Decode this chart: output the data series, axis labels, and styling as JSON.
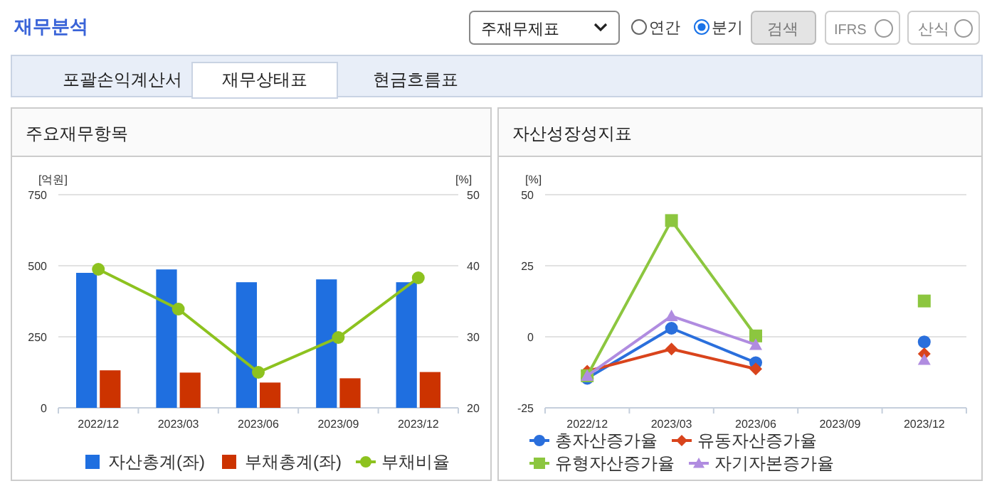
{
  "chart_data": [
    {
      "type": "other",
      "title": "재무분석",
      "annotations": [
        "주재무제표",
        "연간",
        "분기",
        "검색",
        "IFRS",
        "산식",
        "포괄손익계산서",
        "재무상태표",
        "현금흐름표"
      ]
    },
    {
      "type": "bar",
      "title": "주요재무항목",
      "ylabel": "[억원]",
      "y2label": "[%]",
      "categories": [
        "2022/12",
        "2023/03",
        "2023/06",
        "2023/09",
        "2023/12"
      ],
      "ylim": [
        0,
        750
      ],
      "yticks": [
        0,
        250,
        500,
        750
      ],
      "y2lim": [
        20,
        50
      ],
      "y2ticks": [
        20,
        30,
        40,
        50
      ],
      "grid": "y",
      "legend": "bottom",
      "series": [
        {
          "name": "자산총계(좌)",
          "color": "#1f6fe0",
          "values": [
            475,
            487,
            442,
            452,
            442
          ]
        },
        {
          "name": "부채총계(좌)",
          "color": "#cc3300",
          "values": [
            132,
            124,
            89,
            104,
            126
          ]
        },
        {
          "name": "부채비율",
          "color": "#8dc21f",
          "type": "line",
          "axis": "y2",
          "marker": "circle",
          "values": [
            39.5,
            33.9,
            25.0,
            29.9,
            38.3
          ]
        }
      ]
    },
    {
      "type": "line",
      "title": "자산성장성지표",
      "ylabel": "[%]",
      "categories": [
        "2022/12",
        "2023/03",
        "2023/06",
        "2023/09",
        "2023/12"
      ],
      "ylim": [
        -25,
        50
      ],
      "yticks": [
        -25,
        0,
        25,
        50
      ],
      "grid": "y",
      "legend": "bottom",
      "series": [
        {
          "name": "총자산증가율",
          "color": "#2a6fdc",
          "marker": "circle",
          "values": [
            -14.6,
            3.0,
            -9.1,
            null,
            -1.8
          ]
        },
        {
          "name": "유동자산증가율",
          "color": "#d9441c",
          "marker": "diamond",
          "values": [
            -12.1,
            -4.3,
            -11.3,
            null,
            -6.0
          ]
        },
        {
          "name": "유형자산증가율",
          "color": "#8cc63f",
          "marker": "square",
          "values": [
            -13.7,
            40.9,
            0.3,
            null,
            12.6
          ]
        },
        {
          "name": "자기자본증가율",
          "color": "#b08ce0",
          "marker": "triangle",
          "values": [
            -13.7,
            7.3,
            -2.8,
            null,
            -8.1
          ]
        }
      ]
    }
  ]
}
